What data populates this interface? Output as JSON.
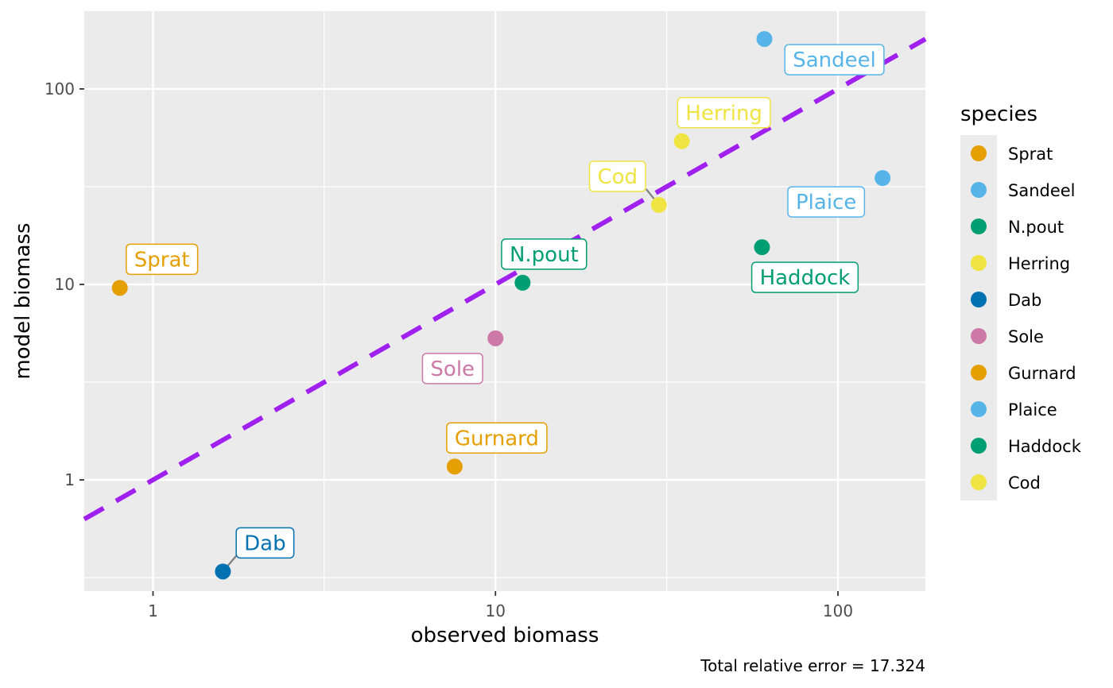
{
  "chart_data": {
    "type": "scatter",
    "title": "",
    "xlabel": "observed biomass",
    "ylabel": "model biomass",
    "x_scale": "log10",
    "y_scale": "log10",
    "xlim": [
      0.63,
      180
    ],
    "ylim": [
      0.27,
      250
    ],
    "x_ticks": [
      1,
      10,
      100
    ],
    "x_tick_labels": [
      "1",
      "10",
      "100"
    ],
    "y_ticks": [
      1,
      10,
      100
    ],
    "y_tick_labels": [
      "1",
      "10",
      "100"
    ],
    "grid": true,
    "legend": {
      "title": "species",
      "position": "right"
    },
    "reference_line": {
      "slope": 1,
      "intercept": 0,
      "style": "dashed",
      "color": "#a020f0"
    },
    "caption": "Total relative error = 17.324",
    "points": [
      {
        "species": "Sprat",
        "x": 0.8,
        "y": 9.6,
        "color": "#E69F00"
      },
      {
        "species": "Sandeel",
        "x": 61,
        "y": 180,
        "color": "#56B4E9"
      },
      {
        "species": "N.pout",
        "x": 12,
        "y": 10.2,
        "color": "#009E73"
      },
      {
        "species": "Herring",
        "x": 35,
        "y": 54,
        "color": "#F0E442"
      },
      {
        "species": "Dab",
        "x": 1.6,
        "y": 0.34,
        "color": "#0072B2"
      },
      {
        "species": "Sole",
        "x": 10,
        "y": 5.3,
        "color": "#CC79A7"
      },
      {
        "species": "Gurnard",
        "x": 7.6,
        "y": 1.17,
        "color": "#E69F00"
      },
      {
        "species": "Plaice",
        "x": 135,
        "y": 35,
        "color": "#56B4E9"
      },
      {
        "species": "Haddock",
        "x": 60,
        "y": 15.5,
        "color": "#009E73"
      },
      {
        "species": "Cod",
        "x": 30,
        "y": 25.5,
        "color": "#F0E442"
      }
    ]
  }
}
